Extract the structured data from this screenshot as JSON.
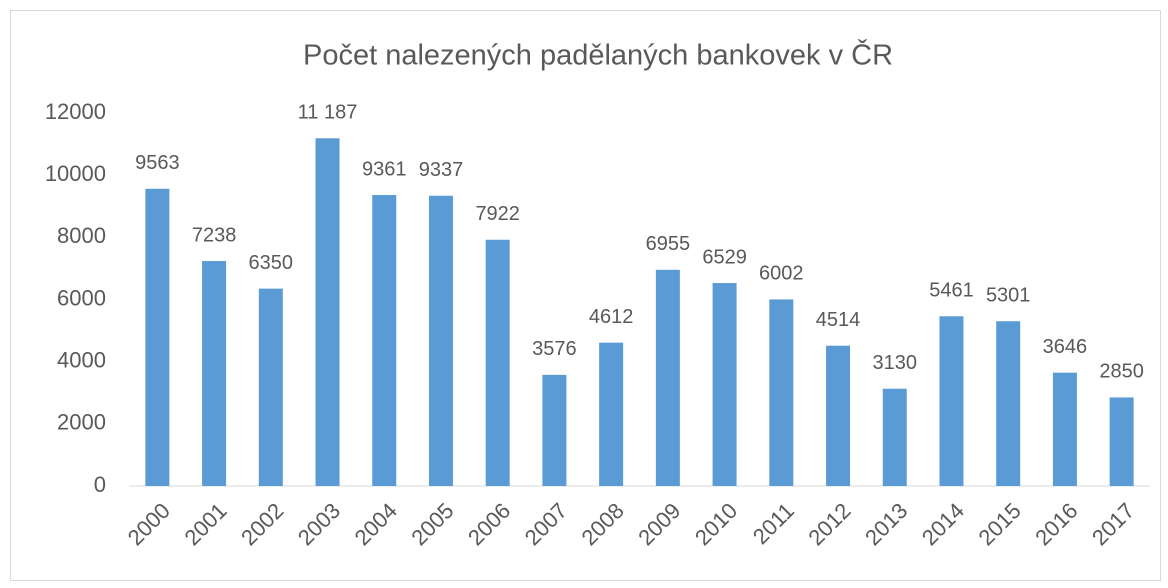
{
  "chart_data": {
    "type": "bar",
    "title": "Počet nalezených padělaných bankovek v ČR",
    "categories": [
      "2000",
      "2001",
      "2002",
      "2003",
      "2004",
      "2005",
      "2006",
      "2007",
      "2008",
      "2009",
      "2010",
      "2011",
      "2012",
      "2013",
      "2014",
      "2015",
      "2016",
      "2017"
    ],
    "values": [
      9563,
      7238,
      6350,
      11187,
      9361,
      9337,
      7922,
      3576,
      4612,
      6955,
      6529,
      6002,
      4514,
      3130,
      5461,
      5301,
      3646,
      2850
    ],
    "value_labels": [
      "9563",
      "7238",
      "6350",
      "11 187",
      "9361",
      "9337",
      "7922",
      "3576",
      "4612",
      "6955",
      "6529",
      "6002",
      "4514",
      "3130",
      "5461",
      "5301",
      "3646",
      "2850"
    ],
    "color": "#5b9bd5",
    "ylim": [
      0,
      12000
    ],
    "yticks": [
      0,
      2000,
      4000,
      6000,
      8000,
      10000,
      12000
    ],
    "grid": false
  }
}
